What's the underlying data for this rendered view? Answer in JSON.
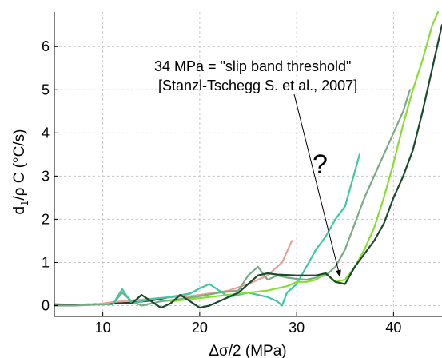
{
  "chart_data": {
    "type": "line",
    "title": "",
    "xlabel": "Δσ/2 (MPa)",
    "ylabel": "d₁/ρ C (°C/s)",
    "ylabel_parts": {
      "main": "d",
      "sub": "1",
      "rest": "/ρ C (°C/s)"
    },
    "xlim": [
      5,
      45
    ],
    "ylim": [
      -0.25,
      6.8
    ],
    "xticks": [
      10,
      20,
      30,
      40
    ],
    "yticks": [
      0,
      1,
      2,
      3,
      4,
      5,
      6
    ],
    "grid": true,
    "legend": "none",
    "annotations": [
      {
        "text": "34 MPa = \"slip band threshold\""
      },
      {
        "text": "[Stanzl-Tschegg S. et al., 2007]"
      },
      {
        "text": "?"
      }
    ],
    "arrow_target": {
      "x": 34.5,
      "y": 0.65
    },
    "series": [
      {
        "color": "#2b2b2b",
        "points": [
          [
            5,
            0.03
          ],
          [
            7,
            0.02
          ],
          [
            9,
            0.03
          ],
          [
            11,
            0.05
          ],
          [
            13,
            0.07
          ],
          [
            15,
            0.12
          ],
          [
            17,
            0.2
          ],
          [
            19,
            0.28
          ]
        ]
      },
      {
        "color": "#e8a090",
        "points": [
          [
            9,
            0.02
          ],
          [
            11,
            0.08
          ],
          [
            13,
            0.12
          ],
          [
            16,
            0.18
          ],
          [
            19,
            0.22
          ],
          [
            21,
            0.28
          ],
          [
            23,
            0.35
          ],
          [
            25,
            0.5
          ],
          [
            27,
            0.7
          ],
          [
            28.5,
            1.0
          ],
          [
            29.5,
            1.5
          ]
        ]
      },
      {
        "color": "#7aaa88",
        "points": [
          [
            5,
            0.0
          ],
          [
            7,
            0.0
          ],
          [
            9,
            0.02
          ],
          [
            11,
            0.03
          ],
          [
            12,
            0.3
          ],
          [
            13,
            0.1
          ],
          [
            14,
            0.0
          ],
          [
            15,
            0.05
          ],
          [
            16,
            0.1
          ],
          [
            18,
            0.15
          ],
          [
            20,
            0.22
          ],
          [
            22,
            0.3
          ],
          [
            24,
            0.35
          ],
          [
            25,
            0.7
          ],
          [
            26,
            0.9
          ],
          [
            27,
            0.6
          ],
          [
            28,
            0.7
          ],
          [
            29,
            0.65
          ],
          [
            30,
            0.62
          ],
          [
            31,
            0.6
          ],
          [
            32,
            0.65
          ],
          [
            33,
            0.7
          ],
          [
            34,
            0.9
          ],
          [
            35,
            1.3
          ],
          [
            36,
            1.9
          ],
          [
            37,
            2.5
          ],
          [
            38,
            3.0
          ],
          [
            39,
            3.5
          ],
          [
            40,
            4.0
          ],
          [
            41,
            4.5
          ],
          [
            41.7,
            5.0
          ]
        ]
      },
      {
        "color": "#40c8a0",
        "points": [
          [
            11,
            0.02
          ],
          [
            12,
            0.38
          ],
          [
            13,
            0.05
          ],
          [
            14,
            0.1
          ],
          [
            15,
            0.15
          ],
          [
            17,
            0.2
          ],
          [
            19,
            0.28
          ],
          [
            20,
            0.4
          ],
          [
            21,
            0.5
          ],
          [
            22,
            0.35
          ],
          [
            23,
            0.2
          ],
          [
            25,
            0.3
          ],
          [
            27,
            0.2
          ],
          [
            28,
            0.1
          ],
          [
            28.5,
            0.0
          ],
          [
            29,
            0.3
          ],
          [
            30,
            0.5
          ],
          [
            31,
            0.9
          ],
          [
            32,
            1.3
          ],
          [
            33,
            1.6
          ],
          [
            34,
            2.0
          ],
          [
            35,
            2.3
          ],
          [
            35.5,
            2.7
          ],
          [
            36,
            3.1
          ],
          [
            36.5,
            3.5
          ]
        ]
      },
      {
        "color": "#88dd33",
        "points": [
          [
            17,
            0.1
          ],
          [
            19,
            0.15
          ],
          [
            21,
            0.2
          ],
          [
            23,
            0.25
          ],
          [
            25,
            0.3
          ],
          [
            27,
            0.35
          ],
          [
            29,
            0.45
          ],
          [
            30,
            0.55
          ],
          [
            31,
            0.55
          ],
          [
            32,
            0.6
          ],
          [
            33,
            0.75
          ],
          [
            34,
            0.55
          ],
          [
            35,
            0.6
          ],
          [
            36,
            0.9
          ],
          [
            37,
            1.3
          ],
          [
            38,
            1.8
          ],
          [
            39,
            2.5
          ],
          [
            40,
            3.3
          ],
          [
            41,
            4.2
          ],
          [
            42,
            5.0
          ],
          [
            43,
            5.7
          ],
          [
            44,
            6.5
          ],
          [
            44.6,
            6.8
          ]
        ]
      },
      {
        "color": "#1a4a2e",
        "points": [
          [
            11.5,
            0.05
          ],
          [
            13,
            0.05
          ],
          [
            14,
            0.25
          ],
          [
            15,
            0.1
          ],
          [
            16,
            -0.05
          ],
          [
            17,
            0.05
          ],
          [
            18,
            0.25
          ],
          [
            19,
            0.1
          ],
          [
            20,
            -0.05
          ],
          [
            21,
            0.0
          ],
          [
            22,
            0.1
          ],
          [
            24,
            0.3
          ],
          [
            25,
            0.5
          ],
          [
            26,
            0.7
          ],
          [
            27,
            0.75
          ],
          [
            28,
            0.72
          ],
          [
            30,
            0.7
          ],
          [
            32,
            0.7
          ],
          [
            33,
            0.75
          ],
          [
            34,
            0.55
          ],
          [
            35,
            0.5
          ],
          [
            36,
            0.9
          ],
          [
            37,
            1.2
          ],
          [
            38,
            1.5
          ],
          [
            39,
            1.9
          ],
          [
            40,
            2.5
          ],
          [
            41,
            3.0
          ],
          [
            42,
            3.6
          ],
          [
            43,
            4.5
          ],
          [
            44,
            5.5
          ],
          [
            45,
            6.5
          ]
        ]
      }
    ]
  }
}
